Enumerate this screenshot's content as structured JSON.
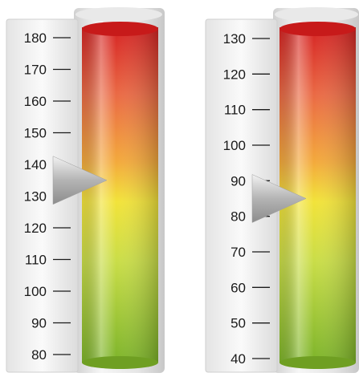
{
  "chart_data": [
    {
      "type": "gauge",
      "orientation": "vertical",
      "axis": {
        "min": 80,
        "max": 180,
        "ticks": [
          180,
          170,
          160,
          150,
          140,
          130,
          120,
          110,
          100,
          90,
          80
        ]
      },
      "pointer_value": 135,
      "color_scale": [
        "#d9201f",
        "#f3a23a",
        "#f1e33a",
        "#a9cf3b",
        "#7fb42a"
      ]
    },
    {
      "type": "gauge",
      "orientation": "vertical",
      "axis": {
        "min": 40,
        "max": 130,
        "ticks": [
          130,
          120,
          110,
          100,
          90,
          80,
          70,
          60,
          50,
          40
        ]
      },
      "pointer_value": 85,
      "color_scale": [
        "#d9201f",
        "#f3a23a",
        "#f1e33a",
        "#a9cf3b",
        "#7fb42a"
      ]
    }
  ]
}
